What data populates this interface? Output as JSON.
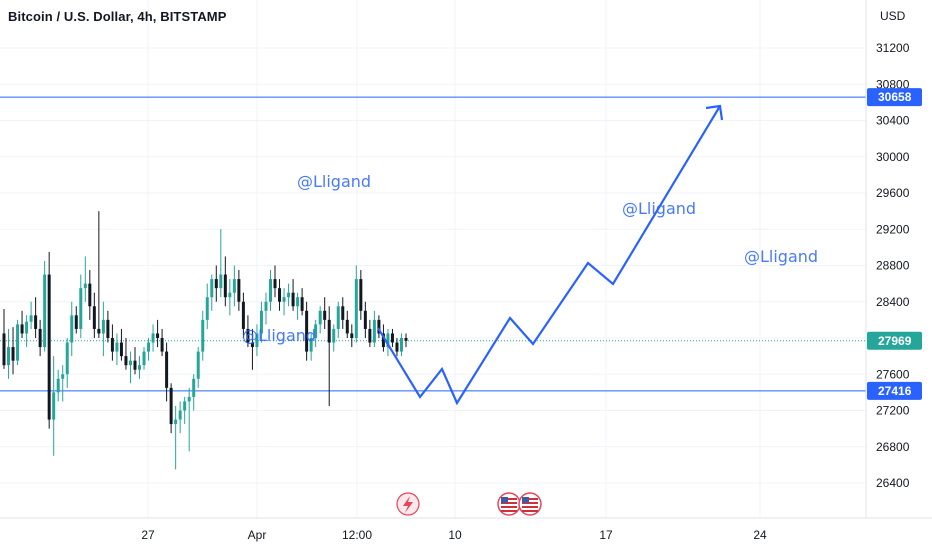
{
  "chart_data": {
    "type": "candlestick",
    "title": "Bitcoin / U.S. Dollar, 4h, BITSTAMP",
    "currency": "USD",
    "y_ticks": [
      26400,
      26800,
      27200,
      27600,
      28000,
      28400,
      28800,
      29200,
      29600,
      30000,
      30400,
      30800,
      31200
    ],
    "y_range": [
      26050,
      31550
    ],
    "x_ticks": [
      "27",
      "Apr",
      "12:00",
      "10",
      "17",
      "24"
    ],
    "last_price": 27969,
    "last_price_label": "27969",
    "resistance": 30658,
    "resistance_label": "30658",
    "support": 27416,
    "support_label": "27416",
    "watermark": "@Lligand",
    "watermark_color": "#2962ff",
    "up_color": "#26a69a",
    "down_color": "#131722",
    "line_color": "#2962ff",
    "price_ohlc": [
      [
        28050,
        28320,
        27660,
        27700
      ],
      [
        27700,
        28100,
        27550,
        27900
      ],
      [
        27900,
        28120,
        27600,
        27750
      ],
      [
        27750,
        28200,
        27700,
        28150
      ],
      [
        28150,
        28300,
        28000,
        28050
      ],
      [
        28050,
        28250,
        27900,
        28180
      ],
      [
        28180,
        28400,
        28100,
        28250
      ],
      [
        28250,
        28450,
        28000,
        28100
      ],
      [
        28100,
        28200,
        27800,
        27900
      ],
      [
        27900,
        28850,
        27850,
        28700
      ],
      [
        28700,
        28950,
        27000,
        27100
      ],
      [
        27100,
        27800,
        26700,
        27400
      ],
      [
        27400,
        27650,
        27300,
        27550
      ],
      [
        27550,
        27700,
        27300,
        27600
      ],
      [
        27600,
        28000,
        27450,
        27950
      ],
      [
        27950,
        28400,
        27800,
        28250
      ],
      [
        28250,
        28350,
        28050,
        28100
      ],
      [
        28100,
        28700,
        28000,
        28550
      ],
      [
        28550,
        28900,
        28400,
        28600
      ],
      [
        28600,
        28750,
        28200,
        28350
      ],
      [
        28350,
        28500,
        28000,
        28100
      ],
      [
        28100,
        29400,
        28000,
        28050
      ],
      [
        28050,
        28400,
        27800,
        28200
      ],
      [
        28200,
        28300,
        27950,
        28000
      ],
      [
        28000,
        28150,
        27750,
        27850
      ],
      [
        27850,
        28050,
        27700,
        27950
      ],
      [
        27950,
        28100,
        27750,
        27800
      ],
      [
        27800,
        28000,
        27650,
        27700
      ],
      [
        27700,
        27850,
        27500,
        27750
      ],
      [
        27750,
        27900,
        27600,
        27650
      ],
      [
        27650,
        27800,
        27550,
        27700
      ],
      [
        27700,
        27900,
        27650,
        27850
      ],
      [
        27850,
        28000,
        27750,
        27950
      ],
      [
        27950,
        28150,
        27850,
        28050
      ],
      [
        28050,
        28200,
        27900,
        28000
      ],
      [
        28000,
        28100,
        27800,
        27850
      ],
      [
        27850,
        27950,
        27300,
        27450
      ],
      [
        27450,
        27500,
        26950,
        27050
      ],
      [
        27050,
        27250,
        26550,
        27100
      ],
      [
        27100,
        27300,
        26950,
        27200
      ],
      [
        27200,
        27350,
        27050,
        27300
      ],
      [
        27300,
        27450,
        26750,
        27350
      ],
      [
        27350,
        27600,
        27200,
        27550
      ],
      [
        27550,
        27900,
        27450,
        27850
      ],
      [
        27850,
        28300,
        27750,
        28200
      ],
      [
        28200,
        28600,
        28100,
        28450
      ],
      [
        28450,
        28700,
        28300,
        28650
      ],
      [
        28650,
        28800,
        28400,
        28550
      ],
      [
        28550,
        29200,
        28450,
        28700
      ],
      [
        28700,
        28900,
        28350,
        28450
      ],
      [
        28450,
        28650,
        28250,
        28500
      ],
      [
        28500,
        28800,
        28350,
        28650
      ],
      [
        28650,
        28750,
        28300,
        28400
      ],
      [
        28400,
        28500,
        28000,
        28100
      ],
      [
        28100,
        28250,
        27900,
        27950
      ],
      [
        27950,
        28100,
        27650,
        27900
      ],
      [
        27900,
        28150,
        27800,
        28050
      ],
      [
        28050,
        28400,
        27950,
        28300
      ],
      [
        28300,
        28500,
        28150,
        28400
      ],
      [
        28400,
        28750,
        28300,
        28650
      ],
      [
        28650,
        28800,
        28450,
        28550
      ],
      [
        28550,
        28650,
        28300,
        28400
      ],
      [
        28400,
        28550,
        28250,
        28450
      ],
      [
        28450,
        28600,
        28350,
        28500
      ],
      [
        28500,
        28650,
        28300,
        28350
      ],
      [
        28350,
        28500,
        28200,
        28450
      ],
      [
        28450,
        28550,
        28250,
        28300
      ],
      [
        28300,
        28400,
        27750,
        27850
      ],
      [
        27850,
        28050,
        27750,
        28000
      ],
      [
        28000,
        28200,
        27900,
        28150
      ],
      [
        28150,
        28350,
        28050,
        28300
      ],
      [
        28300,
        28450,
        28100,
        28200
      ],
      [
        28200,
        28350,
        27250,
        27950
      ],
      [
        27950,
        28150,
        27850,
        28100
      ],
      [
        28100,
        28400,
        28000,
        28350
      ],
      [
        28350,
        28450,
        28100,
        28200
      ],
      [
        28200,
        28300,
        28000,
        28050
      ],
      [
        28050,
        28150,
        27900,
        28000
      ],
      [
        28000,
        28800,
        27950,
        28650
      ],
      [
        28650,
        28750,
        28200,
        28300
      ],
      [
        28300,
        28400,
        28000,
        28100
      ],
      [
        28100,
        28200,
        27900,
        27950
      ],
      [
        27950,
        28300,
        27900,
        28200
      ],
      [
        28200,
        28250,
        28000,
        28050
      ],
      [
        28050,
        28150,
        27850,
        27900
      ],
      [
        27900,
        28100,
        27800,
        28050
      ],
      [
        28050,
        28100,
        27900,
        27950
      ],
      [
        27950,
        28000,
        27800,
        27850
      ],
      [
        27850,
        28050,
        27800,
        28000
      ],
      [
        28000,
        28050,
        27900,
        27969
      ]
    ],
    "projection": [
      [
        378,
        328
      ],
      [
        420,
        397
      ],
      [
        442,
        369
      ],
      [
        457,
        403
      ],
      [
        510,
        318
      ],
      [
        533,
        344
      ],
      [
        588,
        263
      ],
      [
        613,
        284
      ],
      [
        720,
        106
      ]
    ],
    "event_icons": [
      "lightning-icon",
      "us-flag-icon",
      "us-flag-icon"
    ]
  }
}
